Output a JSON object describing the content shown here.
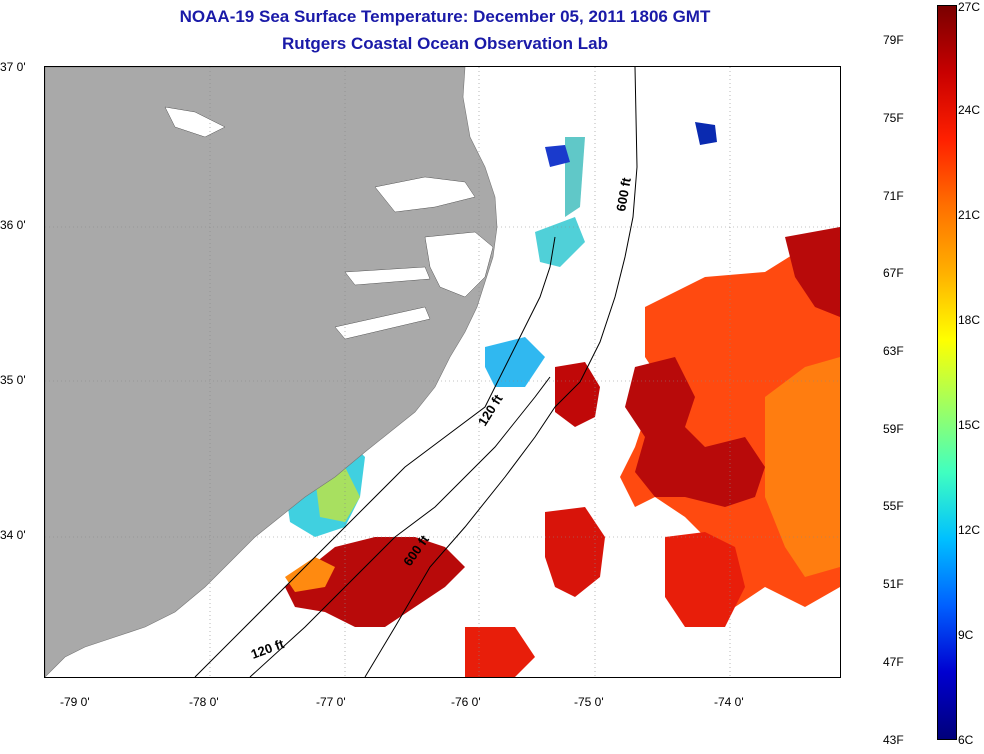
{
  "title": {
    "line1": "NOAA-19 Sea Surface Temperature:  December 05, 2011 1806 GMT",
    "line2": "Rutgers Coastal Ocean Observation Lab"
  },
  "lat_labels": [
    "37 0'",
    "36 0'",
    "35 0'",
    "34 0'"
  ],
  "lon_labels": [
    "-79 0'",
    "-78 0'",
    "-77 0'",
    "-76 0'",
    "-75 0'",
    "-74 0'"
  ],
  "contour_labels": [
    "600 ft",
    "120 ft",
    "600 ft",
    "120 ft"
  ],
  "colorbar": {
    "fahrenheit": [
      "79F",
      "75F",
      "71F",
      "67F",
      "63F",
      "59F",
      "55F",
      "51F",
      "47F",
      "43F"
    ],
    "celsius": [
      "27C",
      "24C",
      "21C",
      "18C",
      "15C",
      "12C",
      "9C",
      "6C"
    ],
    "colors": [
      "#7a0000",
      "#c80000",
      "#ff2000",
      "#ff7000",
      "#ffb000",
      "#ffff00",
      "#a0ff60",
      "#40ffc0",
      "#00c0ff",
      "#0060ff",
      "#0000d0",
      "#00007a"
    ]
  },
  "colors": {
    "land": "#a9a9a9",
    "title": "#1a1aa8"
  }
}
